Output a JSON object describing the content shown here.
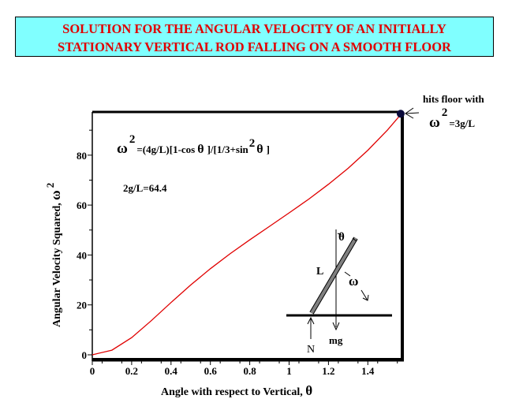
{
  "title": {
    "line1": "SOLUTION FOR THE ANGULAR VELOCITY OF AN INITIALLY",
    "line2": "STATIONARY VERTICAL ROD FALLING ON A SMOOTH FLOOR"
  },
  "colors": {
    "title_bg": "#80ffff",
    "title_text": "#e00000",
    "curve": "#e00000",
    "endpoint": "#0a0a3a"
  },
  "chart_data": {
    "type": "line",
    "xlabel": "Angle with respect to Vertical,",
    "xlabel_symbol": "θ",
    "ylabel": "Angular Velocity Squared,",
    "ylabel_symbol": "ω",
    "ylabel_exp": "2",
    "xlim": [
      0,
      1.5708
    ],
    "ylim": [
      0,
      98
    ],
    "xticks": [
      "0",
      "0.2",
      "0.4",
      "0.6",
      "0.8",
      "1",
      "1.2",
      "1.4"
    ],
    "xtick_values": [
      0,
      0.2,
      0.4,
      0.6,
      0.8,
      1,
      1.2,
      1.4
    ],
    "yticks": [
      "0",
      "20",
      "40",
      "60",
      "80"
    ],
    "ytick_values": [
      0,
      20,
      40,
      60,
      80
    ],
    "grid": false,
    "series": [
      {
        "name": "omega squared",
        "x": [
          0,
          0.1,
          0.2,
          0.3,
          0.4,
          0.5,
          0.6,
          0.7,
          0.8,
          0.9,
          1.0,
          1.1,
          1.2,
          1.3,
          1.4,
          1.5,
          1.5708
        ],
        "y": [
          0,
          1.87,
          6.89,
          13.68,
          20.96,
          28.0,
          34.5,
          40.47,
          46.07,
          51.47,
          56.86,
          62.41,
          68.33,
          74.77,
          81.96,
          90.1,
          96.6
        ]
      }
    ],
    "endpoint": {
      "x": 1.5708,
      "y": 96.6
    },
    "annotations": {
      "formula_lhs": "ω",
      "formula_exp": "2",
      "formula_a": "=(4g/L)[1-cos",
      "formula_theta1": "θ",
      "formula_b": "]/[1/3+sin",
      "formula_exp2": "2",
      "formula_theta2": "θ",
      "formula_c": "]",
      "constant": "2g/L=64.4",
      "hits_floor": "hits floor with",
      "hits_omega": "ω",
      "hits_exp": "2",
      "hits_value": "=3g/L"
    }
  },
  "diagram": {
    "theta": "θ",
    "length": "L",
    "omega": "ω",
    "normal": "N",
    "weight": "mg"
  }
}
